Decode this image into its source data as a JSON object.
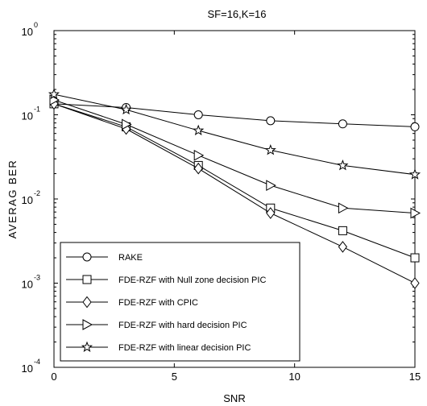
{
  "chart_data": {
    "type": "line",
    "title": "SF=16,K=16",
    "xlabel": "SNR",
    "ylabel": "AVERAG BER",
    "xlim": [
      0,
      15
    ],
    "ylim": [
      0.0001,
      1
    ],
    "yscale": "log",
    "grid": false,
    "legend_position": "bottom-left",
    "x_ticks": [
      0,
      5,
      10,
      15
    ],
    "x_tick_labels": [
      "0",
      "5",
      "10",
      "15"
    ],
    "y_ticks": [
      0.0001,
      0.001,
      0.01,
      0.1,
      1
    ],
    "y_tick_labels": [
      {
        "base": "10",
        "exp": "-4"
      },
      {
        "base": "10",
        "exp": "-3"
      },
      {
        "base": "10",
        "exp": "-2"
      },
      {
        "base": "10",
        "exp": "-1"
      },
      {
        "base": "10",
        "exp": "0"
      }
    ],
    "x": [
      0,
      3,
      6,
      9,
      12,
      15
    ],
    "series": [
      {
        "name": "RAKE",
        "marker": "circle",
        "values": [
          0.135,
          0.122,
          0.1,
          0.085,
          0.078,
          0.072
        ]
      },
      {
        "name": "FDE-RZF with Null zone decision PIC",
        "marker": "square",
        "values": [
          0.135,
          0.072,
          0.025,
          0.0078,
          0.0042,
          0.002
        ]
      },
      {
        "name": "FDE-RZF with CPIC",
        "marker": "diamond",
        "values": [
          0.135,
          0.068,
          0.023,
          0.0068,
          0.0027,
          0.001
        ]
      },
      {
        "name": "FDE-RZF with hard decision PIC",
        "marker": "triangle-right",
        "values": [
          0.15,
          0.077,
          0.033,
          0.0145,
          0.0078,
          0.0068
        ]
      },
      {
        "name": "FDE-RZF with linear decision PIC",
        "marker": "star",
        "values": [
          0.175,
          0.115,
          0.065,
          0.038,
          0.025,
          0.0195
        ]
      }
    ],
    "colors": {
      "line": "#000000",
      "background": "#ffffff"
    }
  }
}
